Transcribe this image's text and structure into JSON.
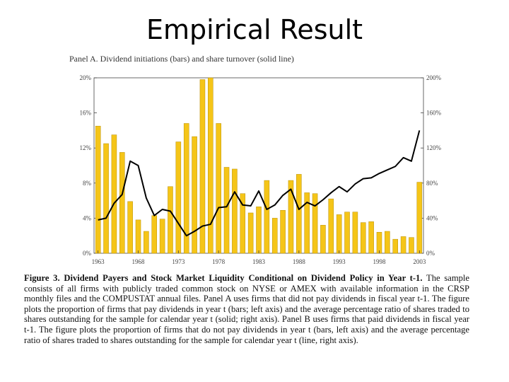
{
  "slide": {
    "title": "Empirical Result"
  },
  "figure": {
    "caption_label": "Figure 3. Dividend Payers and Stock Market Liquidity Conditional on Dividend Policy in Year t-1.",
    "caption_text": "The sample consists of all firms with publicly traded common stock on NYSE or AMEX with available information in the CRSP monthly files and the COMPUSTAT annual files. Panel A uses firms that did not pay dividends in fiscal year t-1. The figure plots the proportion of firms that pay dividends in year t (bars; left axis) and the average percentage ratio of shares traded to shares outstanding for the sample for calendar year t (solid; right axis). Panel B uses firms that paid dividends in fiscal year t-1. The figure plots the proportion of firms that do not pay dividends in year t (bars, left axis) and the average percentage ratio of shares traded to shares outstanding for the sample for calendar year t (line, right axis)."
  },
  "chart_data": {
    "type": "bar",
    "title": "Panel A. Dividend initiations (bars) and share turnover (solid line)",
    "x": [
      1963,
      1964,
      1965,
      1966,
      1967,
      1968,
      1969,
      1970,
      1971,
      1972,
      1973,
      1974,
      1975,
      1976,
      1977,
      1978,
      1979,
      1980,
      1981,
      1982,
      1983,
      1984,
      1985,
      1986,
      1987,
      1988,
      1989,
      1990,
      1991,
      1992,
      1993,
      1994,
      1995,
      1996,
      1997,
      1998,
      1999,
      2000,
      2001,
      2002,
      2003
    ],
    "x_ticks": [
      "1963",
      "1968",
      "1973",
      "1978",
      "1983",
      "1988",
      "1993",
      "1998",
      "2003"
    ],
    "xlim": [
      1963,
      2003
    ],
    "left_axis": {
      "ylim": [
        0,
        20
      ],
      "ticks": [
        "0%",
        "4%",
        "8%",
        "12%",
        "16%",
        "20%"
      ]
    },
    "right_axis": {
      "ylim": [
        0,
        200
      ],
      "ticks": [
        "0%",
        "40%",
        "80%",
        "120%",
        "160%",
        "200%"
      ]
    },
    "series": [
      {
        "name": "Dividend initiations",
        "type": "bar",
        "axis": "left",
        "color": "#f5c518",
        "values": [
          14.5,
          12.5,
          13.5,
          11.5,
          5.9,
          3.8,
          2.5,
          4.3,
          3.9,
          7.6,
          12.7,
          14.8,
          13.3,
          19.8,
          20.0,
          14.8,
          9.8,
          9.6,
          6.8,
          4.6,
          5.3,
          8.3,
          4.0,
          4.9,
          8.3,
          9.0,
          6.9,
          6.8,
          3.2,
          6.2,
          4.4,
          4.7,
          4.7,
          3.5,
          3.6,
          2.4,
          2.5,
          1.6,
          1.9,
          1.8,
          8.1
        ]
      },
      {
        "name": "Share turnover",
        "type": "line",
        "axis": "right",
        "color": "#000000",
        "values": [
          38,
          40,
          57,
          67,
          105,
          100,
          63,
          43,
          50,
          48,
          34,
          20,
          25,
          31,
          33,
          52,
          53,
          70,
          55,
          54,
          71,
          50,
          55,
          66,
          73,
          50,
          58,
          54,
          61,
          69,
          76,
          70,
          79,
          85,
          86,
          91,
          95,
          99,
          109,
          105,
          140
        ]
      }
    ]
  }
}
